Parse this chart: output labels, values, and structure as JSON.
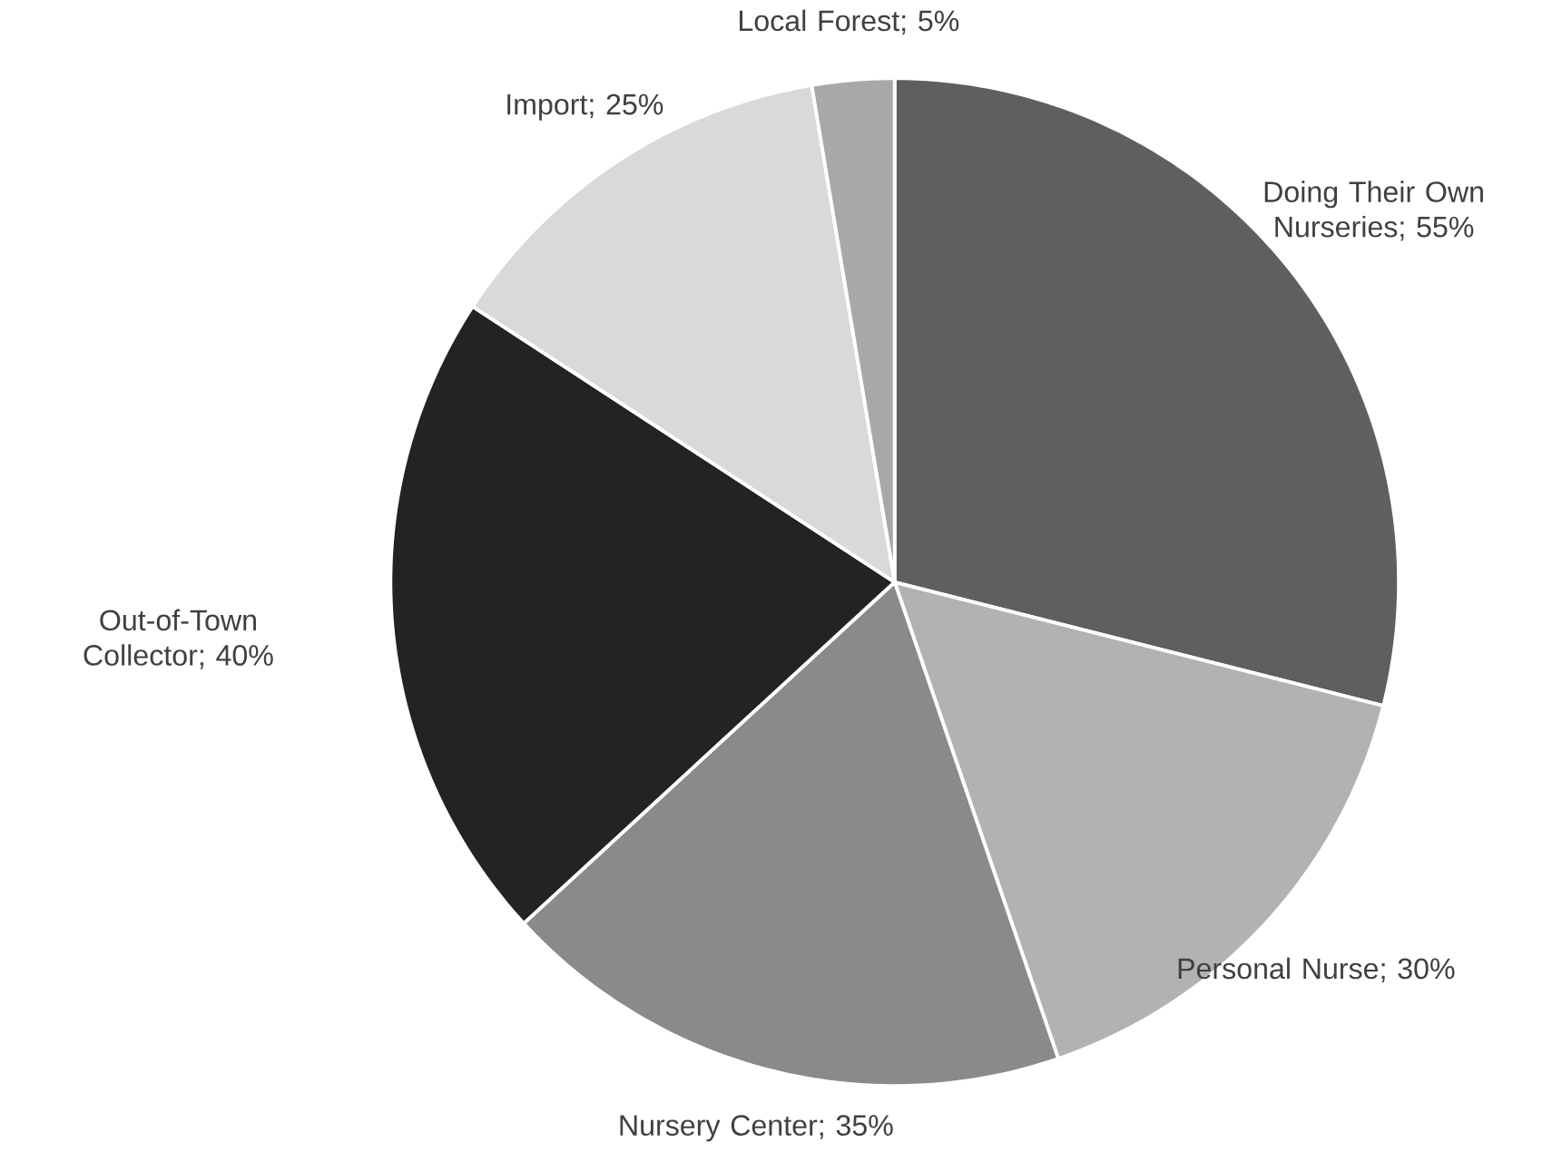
{
  "chart_data": {
    "type": "pie",
    "categories": [
      "Doing Their Own Nurseries; 55%",
      "Personal Nurse; 30%",
      "Nursery Center; 35%",
      "Out-of-Town Collector; 40%",
      "Import; 25%",
      "Local Forest; 5%"
    ],
    "values": [
      55,
      30,
      35,
      40,
      25,
      5
    ],
    "colors": [
      "#5f5f5f",
      "#b2b2b2",
      "#8a8a8a",
      "#232323",
      "#d9d9d9",
      "#a8a8a8"
    ]
  }
}
